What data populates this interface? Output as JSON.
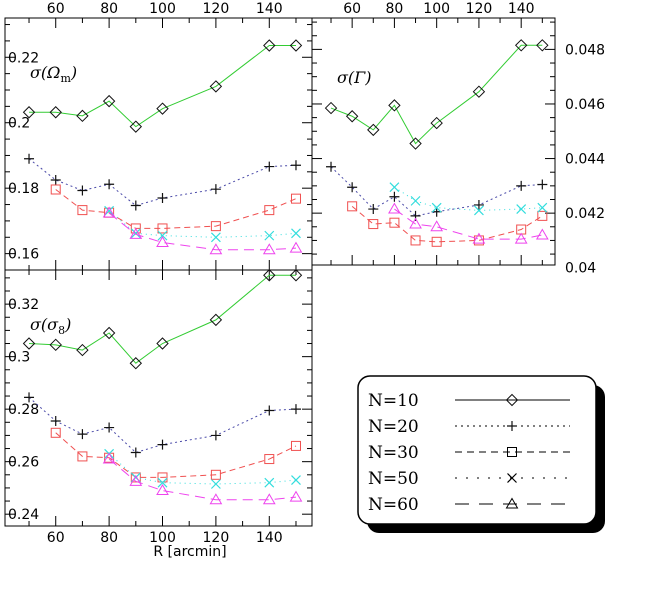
{
  "chart_data": [
    {
      "type": "line",
      "panel": "sigma-omega-m",
      "label": "σ(Ω",
      "label_sub": "m",
      "ylim": [
        0.155,
        0.232
      ],
      "yticks": [
        0.16,
        0.18,
        0.2,
        0.22
      ],
      "ytick_labels": [
        "0.16",
        "0.18",
        "0.2",
        "0.22"
      ],
      "yaxis_side": "left",
      "series": [
        {
          "key": "N10",
          "marker": "diamond",
          "color": "#33cc33",
          "dash": "",
          "x": [
            50,
            60,
            70,
            80,
            90,
            100,
            120,
            140,
            150
          ],
          "y": [
            0.2032,
            0.2032,
            0.2021,
            0.2066,
            0.1988,
            0.2043,
            0.2111,
            0.2236,
            0.2236
          ]
        },
        {
          "key": "N20",
          "marker": "plus",
          "color": "#4a4aa8",
          "dash": "2,3",
          "x": [
            50,
            60,
            70,
            80,
            90,
            100,
            120,
            140,
            150
          ],
          "y": [
            0.189,
            0.1825,
            0.1793,
            0.1812,
            0.1747,
            0.177,
            0.1797,
            0.1866,
            0.187
          ]
        },
        {
          "key": "N30",
          "marker": "square",
          "color": "#f05050",
          "dash": "6,4",
          "x": [
            60,
            70,
            80,
            90,
            100,
            120,
            140,
            150
          ],
          "y": [
            0.1796,
            0.1733,
            0.1725,
            0.1677,
            0.1677,
            0.1684,
            0.1733,
            0.1768
          ]
        },
        {
          "key": "N50",
          "marker": "cross",
          "color": "#33dddd",
          "dash": "1,4",
          "x": [
            80,
            90,
            100,
            120,
            140,
            150
          ],
          "y": [
            0.1731,
            0.1662,
            0.1655,
            0.165,
            0.1655,
            0.1662
          ]
        },
        {
          "key": "N60",
          "marker": "triangle",
          "color": "#ee44ee",
          "dash": "10,6",
          "x": [
            80,
            90,
            100,
            120,
            140,
            150
          ],
          "y": [
            0.1724,
            0.1659,
            0.1634,
            0.1612,
            0.1612,
            0.1617
          ]
        }
      ]
    },
    {
      "type": "line",
      "panel": "sigma-gamma",
      "label": "σ(Γ)",
      "label_sub": "",
      "ylim": [
        0.0401,
        0.04915
      ],
      "yticks": [
        0.04,
        0.042,
        0.044,
        0.046,
        0.048
      ],
      "ytick_labels": [
        "0.04",
        "0.042",
        "0.044",
        "0.046",
        "0.048"
      ],
      "yaxis_side": "right",
      "series": [
        {
          "key": "N10",
          "marker": "diamond",
          "color": "#33cc33",
          "dash": "",
          "x": [
            50,
            60,
            70,
            80,
            90,
            100,
            120,
            140,
            150
          ],
          "y": [
            0.04585,
            0.04555,
            0.04505,
            0.04595,
            0.04455,
            0.0453,
            0.04645,
            0.04815,
            0.04815
          ]
        },
        {
          "key": "N20",
          "marker": "plus",
          "color": "#4a4aa8",
          "dash": "2,3",
          "x": [
            50,
            60,
            70,
            80,
            90,
            100,
            120,
            140,
            150
          ],
          "y": [
            0.0437,
            0.04295,
            0.04215,
            0.0426,
            0.0419,
            0.04205,
            0.0423,
            0.043,
            0.04305
          ]
        },
        {
          "key": "N30",
          "marker": "square",
          "color": "#f05050",
          "dash": "6,4",
          "x": [
            60,
            70,
            80,
            90,
            100,
            120,
            140,
            150
          ],
          "y": [
            0.04225,
            0.0416,
            0.04165,
            0.041,
            0.04095,
            0.041,
            0.0414,
            0.0419
          ]
        },
        {
          "key": "N50",
          "marker": "cross",
          "color": "#33dddd",
          "dash": "1,4",
          "x": [
            80,
            90,
            100,
            120,
            140,
            150
          ],
          "y": [
            0.04295,
            0.04245,
            0.0422,
            0.0421,
            0.04215,
            0.0422
          ]
        },
        {
          "key": "N60",
          "marker": "triangle",
          "color": "#ee44ee",
          "dash": "10,6",
          "x": [
            80,
            90,
            100,
            120,
            140,
            150
          ],
          "y": [
            0.04215,
            0.0416,
            0.0415,
            0.04105,
            0.04105,
            0.0412
          ]
        }
      ]
    },
    {
      "type": "line",
      "panel": "sigma-sigma8",
      "label": "σ(σ",
      "label_sub": "8",
      "ylim": [
        0.2355,
        0.333
      ],
      "yticks": [
        0.24,
        0.26,
        0.28,
        0.3,
        0.32
      ],
      "ytick_labels": [
        "0.24",
        "0.26",
        "0.28",
        "0.3",
        "0.32"
      ],
      "yaxis_side": "left",
      "series": [
        {
          "key": "N10",
          "marker": "diamond",
          "color": "#33cc33",
          "dash": "",
          "x": [
            50,
            60,
            70,
            80,
            90,
            100,
            120,
            140,
            150
          ],
          "y": [
            0.305,
            0.3045,
            0.3025,
            0.309,
            0.2975,
            0.305,
            0.314,
            0.331,
            0.331
          ]
        },
        {
          "key": "N20",
          "marker": "plus",
          "color": "#4a4aa8",
          "dash": "2,3",
          "x": [
            50,
            60,
            70,
            80,
            90,
            100,
            120,
            140,
            150
          ],
          "y": [
            0.2845,
            0.2755,
            0.2705,
            0.273,
            0.2635,
            0.2665,
            0.27,
            0.2795,
            0.28
          ]
        },
        {
          "key": "N30",
          "marker": "square",
          "color": "#f05050",
          "dash": "6,4",
          "x": [
            60,
            70,
            80,
            90,
            100,
            120,
            140,
            150
          ],
          "y": [
            0.271,
            0.262,
            0.2615,
            0.254,
            0.254,
            0.255,
            0.261,
            0.266
          ]
        },
        {
          "key": "N50",
          "marker": "cross",
          "color": "#33dddd",
          "dash": "1,4",
          "x": [
            80,
            90,
            100,
            120,
            140,
            150
          ],
          "y": [
            0.263,
            0.254,
            0.252,
            0.2515,
            0.252,
            0.253
          ]
        },
        {
          "key": "N60",
          "marker": "triangle",
          "color": "#ee44ee",
          "dash": "10,6",
          "x": [
            80,
            90,
            100,
            120,
            140,
            150
          ],
          "y": [
            0.261,
            0.2525,
            0.249,
            0.2455,
            0.2455,
            0.2465
          ]
        }
      ]
    }
  ],
  "x_axis": {
    "label": "R [arcmin]",
    "xlim": [
      41,
      156
    ],
    "ticks": [
      60,
      80,
      100,
      120,
      140
    ],
    "tick_labels": [
      "60",
      "80",
      "100",
      "120",
      "140"
    ]
  },
  "legend": {
    "placement": "lower-right",
    "entries": [
      {
        "label": "N=10",
        "key": "N10"
      },
      {
        "label": "N=20",
        "key": "N20"
      },
      {
        "label": "N=30",
        "key": "N30"
      },
      {
        "label": "N=50",
        "key": "N50"
      },
      {
        "label": "N=60",
        "key": "N60"
      }
    ]
  }
}
